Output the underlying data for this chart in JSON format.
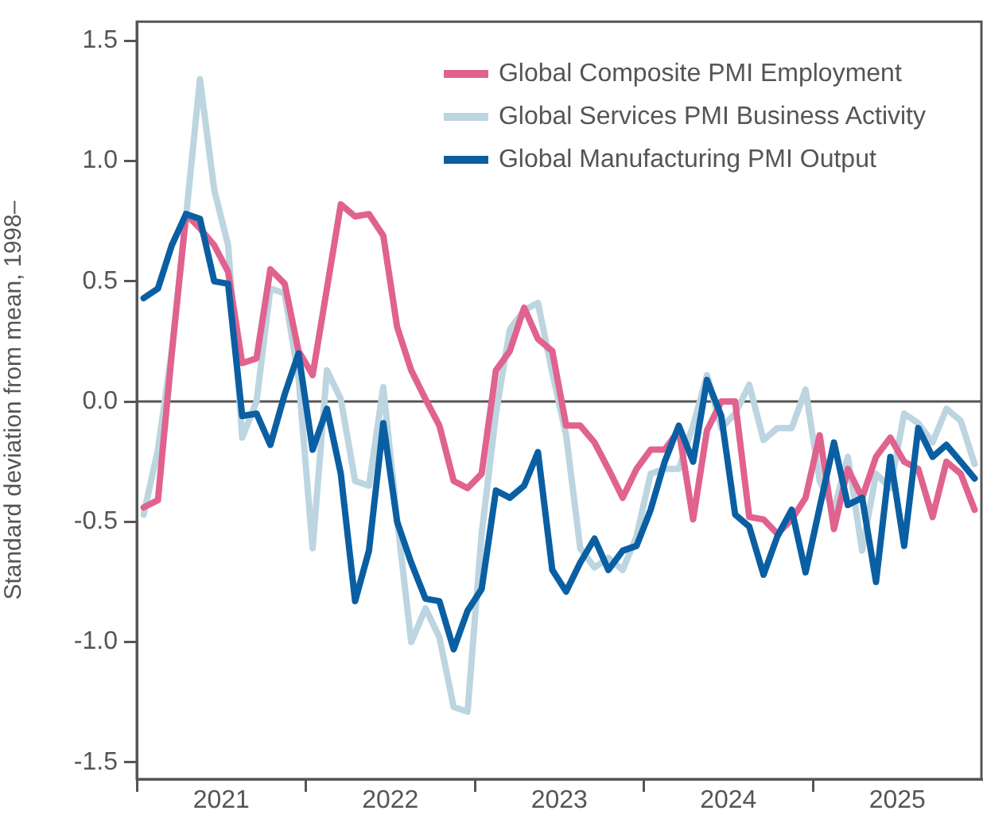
{
  "chart_data": {
    "type": "line",
    "ylabel": "Standard deviation from mean, 1998–",
    "x": [
      "2021-01-16",
      "2021-02-15",
      "2021-03-16",
      "2021-04-16",
      "2021-05-16",
      "2021-06-16",
      "2021-07-16",
      "2021-08-16",
      "2021-09-16",
      "2021-10-16",
      "2021-11-16",
      "2021-12-16",
      "2022-01-16",
      "2022-02-15",
      "2022-03-16",
      "2022-04-16",
      "2022-05-16",
      "2022-06-16",
      "2022-07-16",
      "2022-08-16",
      "2022-09-16",
      "2022-10-16",
      "2022-11-16",
      "2022-12-16",
      "2023-01-16",
      "2023-02-15",
      "2023-03-16",
      "2023-04-16",
      "2023-05-16",
      "2023-06-16",
      "2023-07-16",
      "2023-08-16",
      "2023-09-16",
      "2023-10-16",
      "2023-11-16",
      "2023-12-16",
      "2024-01-16",
      "2024-02-15",
      "2024-03-16",
      "2024-04-16",
      "2024-05-16",
      "2024-06-16",
      "2024-07-16",
      "2024-08-16",
      "2024-09-16",
      "2024-10-16",
      "2024-11-16",
      "2024-12-16",
      "2025-01-16",
      "2025-02-15",
      "2025-03-16",
      "2025-04-16",
      "2025-05-16",
      "2025-06-16",
      "2025-07-16",
      "2025-08-16",
      "2025-09-16",
      "2025-10-16",
      "2025-11-16",
      "2025-12-16"
    ],
    "series": [
      {
        "name": "Global Composite PMI Employment",
        "color": "#e0628f",
        "values": [
          -0.44,
          -0.41,
          0.2,
          0.78,
          0.72,
          0.65,
          0.54,
          0.16,
          0.18,
          0.55,
          0.49,
          0.21,
          0.11,
          0.47,
          0.82,
          0.77,
          0.78,
          0.69,
          0.31,
          0.13,
          0.01,
          -0.1,
          -0.33,
          -0.36,
          -0.3,
          0.13,
          0.21,
          0.39,
          0.26,
          0.21,
          -0.1,
          -0.1,
          -0.17,
          -0.28,
          -0.4,
          -0.28,
          -0.2,
          -0.2,
          -0.12,
          -0.49,
          -0.12,
          0,
          0,
          -0.48,
          -0.49,
          -0.55,
          -0.49,
          -0.4,
          -0.14,
          -0.53,
          -0.28,
          -0.4,
          -0.23,
          -0.15,
          -0.25,
          -0.28,
          -0.48,
          -0.25,
          -0.3,
          -0.45
        ]
      },
      {
        "name": "Global Services PMI Business Activity",
        "color": "#bcd5e0",
        "values": [
          -0.47,
          -0.2,
          0.21,
          0.77,
          1.34,
          0.88,
          0.65,
          -0.15,
          0,
          0.47,
          0.45,
          0.1,
          -0.61,
          0.13,
          0.01,
          -0.33,
          -0.35,
          0.06,
          -0.49,
          -1,
          -0.86,
          -0.98,
          -1.27,
          -1.29,
          -0.55,
          -0.05,
          0.3,
          0.38,
          0.41,
          0.12,
          -0.14,
          -0.61,
          -0.69,
          -0.65,
          -0.7,
          -0.56,
          -0.3,
          -0.28,
          -0.28,
          -0.1,
          0.11,
          -0.11,
          -0.05,
          0.07,
          -0.16,
          -0.11,
          -0.11,
          0.05,
          -0.33,
          -0.45,
          -0.23,
          -0.62,
          -0.3,
          -0.36,
          -0.05,
          -0.09,
          -0.17,
          -0.03,
          -0.08,
          -0.26
        ]
      },
      {
        "name": "Global Manufacturing PMI Output",
        "color": "#0a5fa3",
        "values": [
          0.43,
          0.47,
          0.65,
          0.78,
          0.76,
          0.5,
          0.49,
          -0.06,
          -0.05,
          -0.18,
          0.03,
          0.2,
          -0.2,
          -0.03,
          -0.3,
          -0.83,
          -0.62,
          -0.09,
          -0.5,
          -0.67,
          -0.82,
          -0.83,
          -1.03,
          -0.87,
          -0.78,
          -0.37,
          -0.4,
          -0.35,
          -0.21,
          -0.7,
          -0.79,
          -0.67,
          -0.57,
          -0.7,
          -0.62,
          -0.6,
          -0.45,
          -0.25,
          -0.1,
          -0.25,
          0.09,
          -0.06,
          -0.47,
          -0.52,
          -0.72,
          -0.56,
          -0.45,
          -0.71,
          -0.44,
          -0.17,
          -0.43,
          -0.4,
          -0.75,
          -0.23,
          -0.6,
          -0.11,
          -0.23,
          -0.18,
          -0.25,
          -0.32
        ]
      }
    ],
    "xlim": [
      "2021-01-01",
      "2025-12-31"
    ],
    "xticks": [
      {
        "value": "2021-01-01",
        "label": null
      },
      {
        "value": "2021-07-01",
        "label": "2021"
      },
      {
        "value": "2022-01-01",
        "label": null
      },
      {
        "value": "2022-07-01",
        "label": "2022"
      },
      {
        "value": "2023-01-01",
        "label": null
      },
      {
        "value": "2023-07-01",
        "label": "2023"
      },
      {
        "value": "2024-01-01",
        "label": null
      },
      {
        "value": "2024-07-01",
        "label": "2024"
      },
      {
        "value": "2025-01-01",
        "label": null
      },
      {
        "value": "2025-07-01",
        "label": "2025"
      }
    ],
    "ylim": [
      -1.57,
      1.58
    ],
    "yticks": [
      1.5,
      {
        "value": 1,
        "label": "1.0"
      },
      0.5,
      {
        "value": 0,
        "label": "0.0"
      },
      -0.5,
      {
        "value": -1,
        "label": "-1.0"
      },
      -1.5
    ],
    "ref_lines": [
      {
        "axis": "y",
        "value": 0,
        "color": "#555555"
      }
    ],
    "legend": "top right",
    "grid": false,
    "marker": "none",
    "line_style": "solid"
  }
}
